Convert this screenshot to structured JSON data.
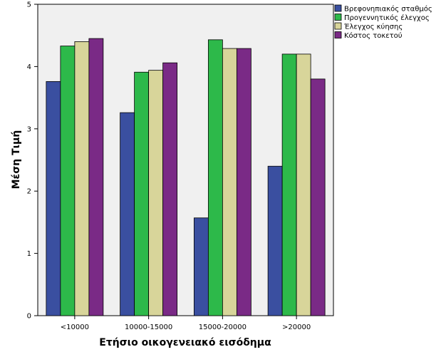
{
  "chart_data": {
    "type": "bar",
    "categories": [
      "<10000",
      "10000-15000",
      "15000-20000",
      ">20000"
    ],
    "series": [
      {
        "name": "Βρεφονηπιακός σταθμός",
        "color": "#3a4fa0",
        "values": [
          3.76,
          3.26,
          1.57,
          2.4
        ]
      },
      {
        "name": "Προγεννητικός έλεγχος",
        "color": "#2db94a",
        "values": [
          4.33,
          3.91,
          4.43,
          4.2
        ]
      },
      {
        "name": "Έλεγχος κύησης",
        "color": "#d8d59a",
        "values": [
          4.4,
          3.94,
          4.29,
          4.2
        ]
      },
      {
        "name": "Κόστος τοκετού",
        "color": "#7a2a86",
        "values": [
          4.45,
          4.06,
          4.29,
          3.8
        ]
      }
    ],
    "title": "",
    "xlabel": "Ετήσιο οικογενειακό εισόδημα",
    "ylabel": "Μέση Τιμή",
    "ylim": [
      0,
      5
    ],
    "yticks": [
      "0",
      "1",
      "2",
      "3",
      "4",
      "5"
    ],
    "grid": false,
    "legend_position": "top-right",
    "plot_background": "#f0f0f0"
  }
}
